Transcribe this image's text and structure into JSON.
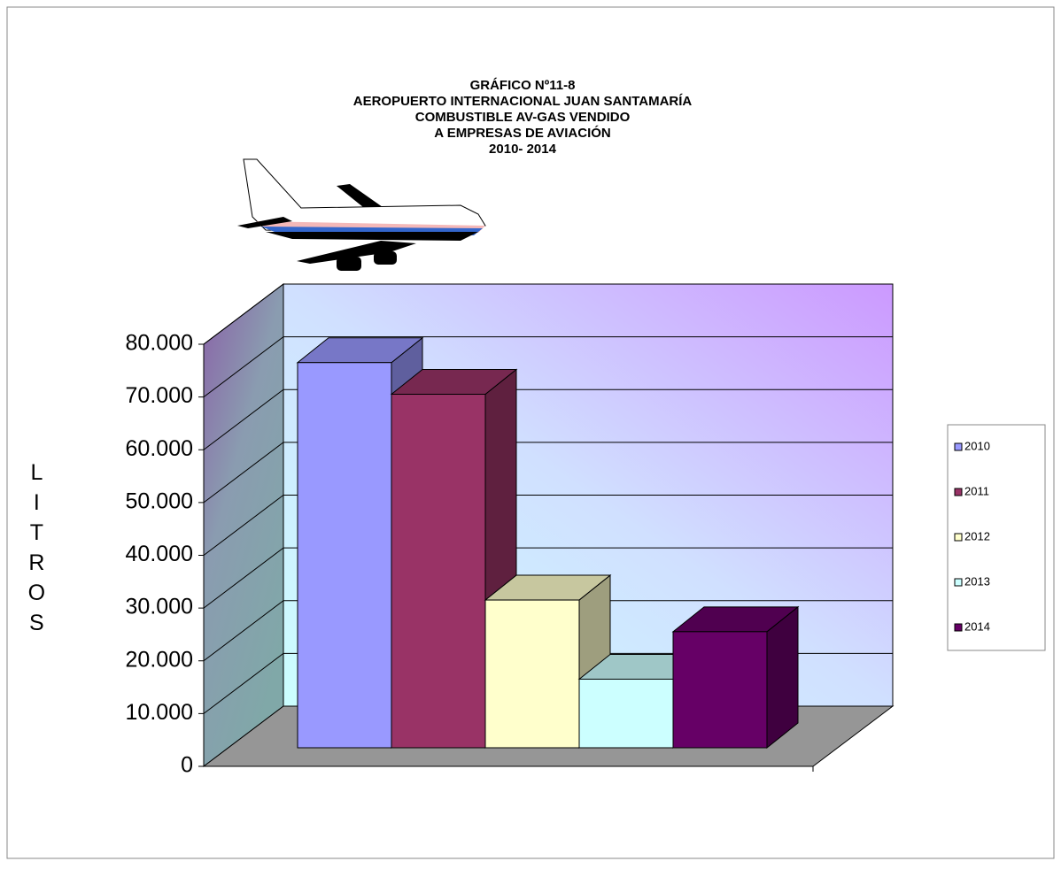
{
  "chart_data": {
    "type": "bar3d",
    "title": [
      "GRÁFICO Nº11-8",
      "AEROPUERTO INTERNACIONAL JUAN SANTAMARÍA",
      "COMBUSTIBLE AV-GAS VENDIDO",
      "A EMPRESAS DE AVIACIÓN",
      "2010- 2014"
    ],
    "y_label": "LITROS",
    "categories": [
      "2010",
      "2011",
      "2012",
      "2013",
      "2014"
    ],
    "values": [
      73000,
      67000,
      28000,
      13000,
      22000
    ],
    "colors": [
      "#9999ff",
      "#993366",
      "#ffffcc",
      "#ccffff",
      "#660066"
    ],
    "ylim": [
      0,
      80000
    ],
    "yticks": [
      0,
      {
        "value": 10000,
        "label": "10.000"
      },
      {
        "value": 20000,
        "label": "20.000"
      },
      {
        "value": 30000,
        "label": "30.000"
      },
      {
        "value": 40000,
        "label": "40.000"
      },
      {
        "value": 50000,
        "label": "50.000"
      },
      {
        "value": 60000,
        "label": "60.000"
      },
      {
        "value": 70000,
        "label": "70.000"
      },
      {
        "value": 80000,
        "label": "80.000"
      }
    ],
    "grid": true,
    "legend": "right"
  }
}
